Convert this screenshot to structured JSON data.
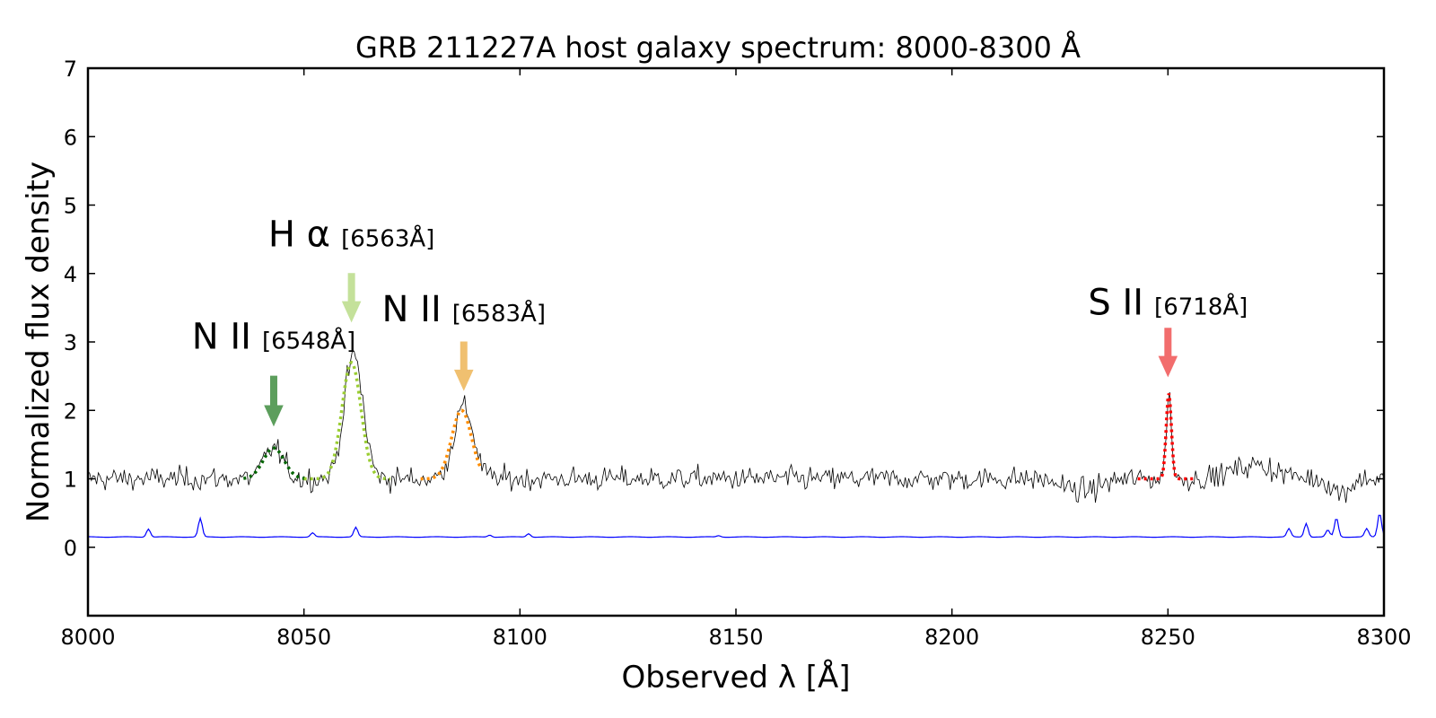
{
  "chart_data": {
    "type": "line",
    "title": "GRB 211227A host galaxy spectrum: 8000-8300 Å",
    "xlabel": "Observed λ [Å]",
    "ylabel": "Normalized flux density",
    "xlim": [
      8000,
      8300
    ],
    "ylim": [
      -1,
      7
    ],
    "xticks": [
      8000,
      8050,
      8100,
      8150,
      8200,
      8250,
      8300
    ],
    "yticks": [
      0,
      1,
      2,
      3,
      4,
      5,
      6,
      7
    ],
    "grid": false,
    "legend": "none",
    "series": [
      {
        "role": "flux",
        "color": "#000000",
        "baseline": 1.0,
        "noise_sigma": 0.17,
        "features": [
          {
            "x": 8043,
            "amp": 0.45,
            "sigma": 2.2
          },
          {
            "x": 8061.5,
            "amp": 1.8,
            "sigma": 2.2
          },
          {
            "x": 8087,
            "amp": 1.05,
            "sigma": 2.3
          },
          {
            "x": 8250.2,
            "amp": 1.25,
            "sigma": 0.6
          },
          {
            "x": 8230,
            "amp": -0.18,
            "sigma": 4
          },
          {
            "x": 8270,
            "amp": 0.2,
            "sigma": 5
          },
          {
            "x": 8290,
            "amp": -0.2,
            "sigma": 2
          }
        ]
      },
      {
        "role": "error",
        "color": "#0000ff",
        "baseline": 0.15,
        "spikes": [
          {
            "x": 8014,
            "h": 0.12
          },
          {
            "x": 8026,
            "h": 0.27
          },
          {
            "x": 8052,
            "h": 0.06
          },
          {
            "x": 8062,
            "h": 0.14
          },
          {
            "x": 8093,
            "h": 0.03
          },
          {
            "x": 8102,
            "h": 0.05
          },
          {
            "x": 8146,
            "h": 0.02
          },
          {
            "x": 8278,
            "h": 0.12
          },
          {
            "x": 8282,
            "h": 0.2
          },
          {
            "x": 8287,
            "h": 0.1
          },
          {
            "x": 8289,
            "h": 0.28
          },
          {
            "x": 8296,
            "h": 0.12
          },
          {
            "x": 8299,
            "h": 0.35
          }
        ]
      }
    ],
    "fits": [
      {
        "center": 8043,
        "amp": 0.45,
        "sigma": 2.4,
        "range": [
          8036,
          8051
        ],
        "color": "#006400"
      },
      {
        "center": 8061,
        "amp": 1.7,
        "sigma": 2.2,
        "range": [
          8050,
          8070
        ],
        "color": "#9acd32"
      },
      {
        "center": 8086.5,
        "amp": 1.0,
        "sigma": 2.3,
        "range": [
          8077,
          8091
        ],
        "color": "#ff8c00"
      },
      {
        "center": 8250.2,
        "amp": 1.25,
        "sigma": 0.6,
        "range": [
          8243,
          8256
        ],
        "color": "#ff0000"
      }
    ],
    "annotations": [
      {
        "name": "N II",
        "wave": "[6548Å]",
        "x": 8043,
        "arrow_top": 2.5,
        "arrow_tip": 1.78,
        "label_y": 2.9,
        "color": "#5c9e5c"
      },
      {
        "name": "H α",
        "wave": "[6563Å]",
        "x": 8061,
        "arrow_top": 4.0,
        "arrow_tip": 3.3,
        "label_y": 4.4,
        "color": "#c4e19a"
      },
      {
        "name": "N II",
        "wave": "[6583Å]",
        "x": 8087,
        "arrow_top": 3.0,
        "arrow_tip": 2.3,
        "label_y": 3.3,
        "color": "#f0c070"
      },
      {
        "name": "S II",
        "wave": "[6718Å]",
        "x": 8250,
        "arrow_top": 3.2,
        "arrow_tip": 2.5,
        "label_y": 3.4,
        "color": "#f26d6d"
      }
    ]
  }
}
